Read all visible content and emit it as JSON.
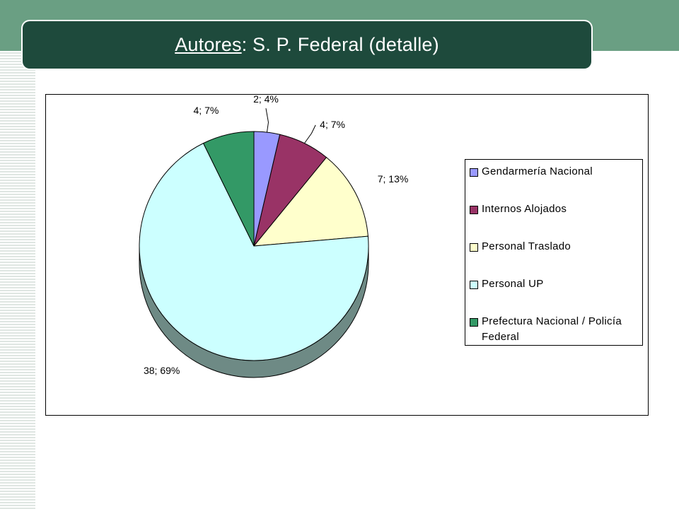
{
  "slide": {
    "title_underlined": "Autores",
    "title_rest": ": S. P. Federal (detalle)"
  },
  "colors": {
    "top_band": "#6a9f83",
    "title_bar": "#1e4a3c",
    "slice_side": "#6e8a85"
  },
  "chart_data": {
    "type": "pie",
    "three_d": true,
    "legend_position": "right",
    "categories": [
      "Gendarmería Nacional",
      "Internos Alojados",
      "Personal Traslado",
      "Personal UP",
      "Prefectura Nacional / Policía Federal"
    ],
    "values": [
      2,
      4,
      7,
      38,
      4
    ],
    "percents": [
      4,
      7,
      13,
      69,
      7
    ],
    "data_labels": [
      "2; 4%",
      "4; 7%",
      "7; 13%",
      "38; 69%",
      "4; 7%"
    ],
    "colors": [
      "#9999ff",
      "#993366",
      "#ffffcc",
      "#ccffff",
      "#339966"
    ]
  }
}
